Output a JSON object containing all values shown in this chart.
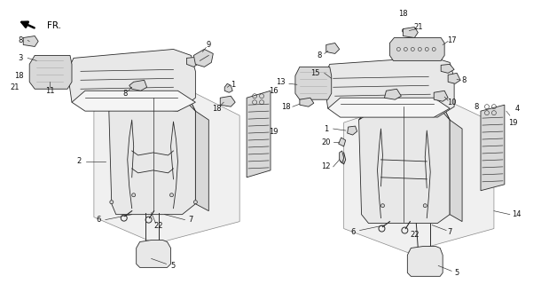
{
  "bg_color": "#ffffff",
  "line_color": "#2a2a2a",
  "fig_width": 6.19,
  "fig_height": 3.2,
  "dpi": 100,
  "xlim": [
    0,
    619
  ],
  "ylim": [
    0,
    320
  ]
}
